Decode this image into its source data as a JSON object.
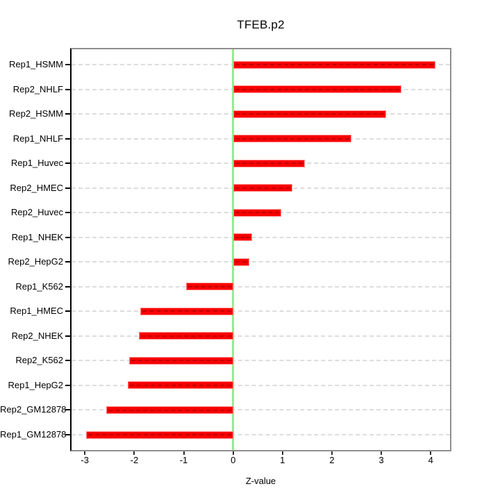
{
  "chart_data": {
    "type": "bar",
    "orientation": "horizontal",
    "title": "TFEB.p2",
    "xlabel": "Z-value",
    "ylabel": "",
    "legend": "none",
    "grid": "horizontal dashed line per category",
    "categories": [
      "Rep1_HSMM",
      "Rep2_NHLF",
      "Rep2_HSMM",
      "Rep1_NHLF",
      "Rep1_Huvec",
      "Rep2_HMEC",
      "Rep2_Huvec",
      "Rep1_NHEK",
      "Rep2_HepG2",
      "Rep1_K562",
      "Rep1_HMEC",
      "Rep2_NHEK",
      "Rep2_K562",
      "Rep1_HepG2",
      "Rep2_GM12878",
      "Rep1_GM12878"
    ],
    "values": [
      4.1,
      3.4,
      3.1,
      2.4,
      1.45,
      1.2,
      0.97,
      0.39,
      0.33,
      -0.95,
      -1.88,
      -1.91,
      -2.1,
      -2.13,
      -2.57,
      -2.97
    ],
    "xticks": [
      -3,
      -2,
      -1,
      0,
      1,
      2,
      3,
      4
    ],
    "xlim": [
      -3.27,
      4.39
    ],
    "zero_reference_line": 0,
    "colors": {
      "bar": "#f80000",
      "bar_edge": "#ff8888",
      "bar_dash": "rgba(150,0,0,0.55)",
      "zero_line": "#90ee90",
      "grid_line": "#dcdcdc",
      "box": "#8f8f8f",
      "y_axis": "#000000",
      "tick": "#303030",
      "text": "#000000",
      "background": "#ffffff"
    }
  }
}
